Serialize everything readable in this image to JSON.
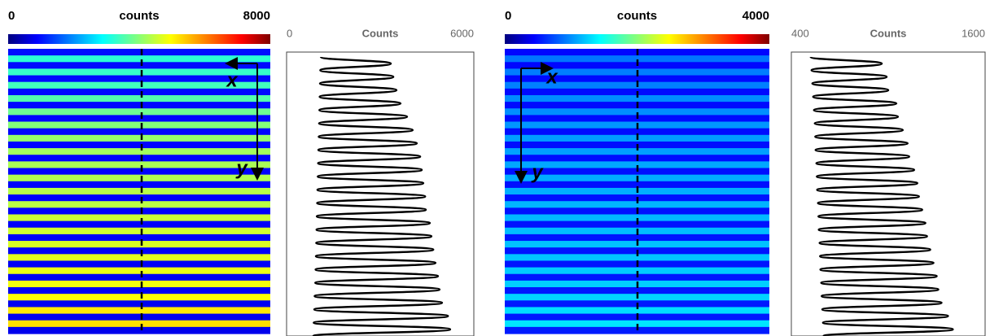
{
  "chart_data": [
    {
      "type": "heatmap",
      "title": "counts",
      "clim": [
        0,
        8000
      ],
      "cticks": [
        0,
        8000
      ],
      "colormap": "jet",
      "annotations": [
        "x",
        "y"
      ]
    },
    {
      "type": "line",
      "xlabel": "Counts",
      "xlim": [
        0,
        6000
      ],
      "xticks": [
        0,
        6000
      ],
      "color": "#000000",
      "values": [
        1100,
        3340,
        1080,
        3420,
        1070,
        3520,
        1060,
        3650,
        1050,
        3860,
        1040,
        4040,
        1030,
        4170,
        1020,
        4280,
        1010,
        4330,
        1000,
        4380,
        990,
        4440,
        980,
        4460,
        970,
        4590,
        960,
        4640,
        950,
        4700,
        940,
        4770,
        930,
        4850,
        920,
        4900,
        900,
        4980,
        890,
        5170,
        870,
        5240,
        860
      ]
    },
    {
      "type": "heatmap",
      "title": "counts",
      "clim": [
        0,
        4000
      ],
      "cticks": [
        0,
        4000
      ],
      "colormap": "jet",
      "annotations": [
        "x",
        "y"
      ]
    },
    {
      "type": "line",
      "xlabel": "Counts",
      "xlim": [
        400,
        1600
      ],
      "xticks": [
        400,
        1600
      ],
      "color": "#000000",
      "values": [
        520,
        960,
        525,
        990,
        530,
        1000,
        535,
        1050,
        540,
        1060,
        545,
        1090,
        548,
        1120,
        550,
        1130,
        555,
        1160,
        558,
        1180,
        560,
        1190,
        565,
        1210,
        568,
        1230,
        570,
        1240,
        575,
        1260,
        578,
        1280,
        580,
        1300,
        585,
        1310,
        588,
        1330,
        592,
        1370,
        596,
        1400,
        600
      ]
    }
  ]
}
